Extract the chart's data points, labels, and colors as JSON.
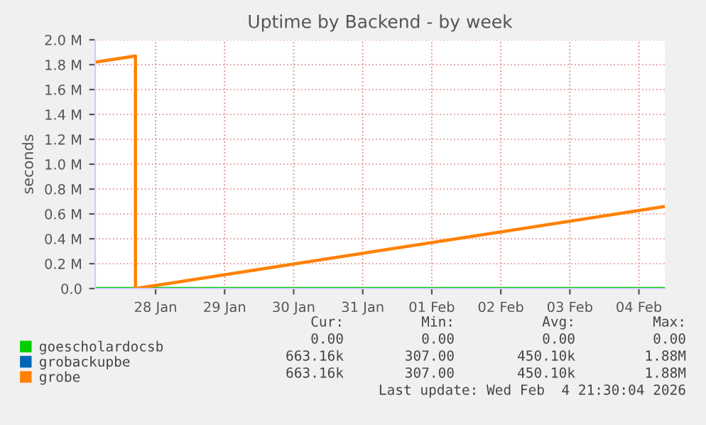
{
  "chart_data": {
    "type": "line",
    "title": "Uptime by Backend - by week",
    "ylabel": "seconds",
    "xlim": [
      "2026-01-27T03:00",
      "2026-02-04T09:00"
    ],
    "xticks": [
      {
        "value": "2026-01-28",
        "label": "28 Jan"
      },
      {
        "value": "2026-01-29",
        "label": "29 Jan"
      },
      {
        "value": "2026-01-30",
        "label": "30 Jan"
      },
      {
        "value": "2026-01-31",
        "label": "31 Jan"
      },
      {
        "value": "2026-02-01",
        "label": "01 Feb"
      },
      {
        "value": "2026-02-02",
        "label": "02 Feb"
      },
      {
        "value": "2026-02-03",
        "label": "03 Feb"
      },
      {
        "value": "2026-02-04",
        "label": "04 Feb"
      }
    ],
    "ylim": [
      0,
      2000000
    ],
    "yticks": [
      {
        "value": 0,
        "label": "0.0"
      },
      {
        "value": 200000,
        "label": "0.2 M"
      },
      {
        "value": 400000,
        "label": "0.4 M"
      },
      {
        "value": 600000,
        "label": "0.6 M"
      },
      {
        "value": 800000,
        "label": "0.8 M"
      },
      {
        "value": 1000000,
        "label": "1.0 M"
      },
      {
        "value": 1200000,
        "label": "1.2 M"
      },
      {
        "value": 1400000,
        "label": "1.4 M"
      },
      {
        "value": 1600000,
        "label": "1.6 M"
      },
      {
        "value": 1800000,
        "label": "1.8 M"
      },
      {
        "value": 2000000,
        "label": "2.0 M"
      }
    ],
    "grid": true,
    "legend": "bottom",
    "series": [
      {
        "name": "goescholardocsb",
        "color": "#00cc00",
        "x": [
          "2026-01-27T03:00",
          "2026-02-04T09:00"
        ],
        "values": [
          0,
          0
        ]
      },
      {
        "name": "grobackupbe",
        "color": "#0066b3",
        "values": [
          null,
          null
        ]
      },
      {
        "name": "grobe",
        "color": "#ff8000",
        "x": [
          "2026-01-27T03:00",
          "2026-01-27T17:00",
          "2026-01-27T17:00",
          "2026-02-04T09:00"
        ],
        "values": [
          1820000,
          1870000,
          0,
          660000
        ]
      }
    ],
    "annotations": [
      "Cur:",
      "Min:",
      "Avg:",
      "Max:",
      "0.00",
      "0.00",
      "0.00",
      "0.00",
      "663.16k",
      "307.00",
      "450.10k",
      "1.88M",
      "663.16k",
      "307.00",
      "450.10k",
      "1.88M",
      "Last update: Wed Feb  4 21:30:04 2026"
    ]
  }
}
